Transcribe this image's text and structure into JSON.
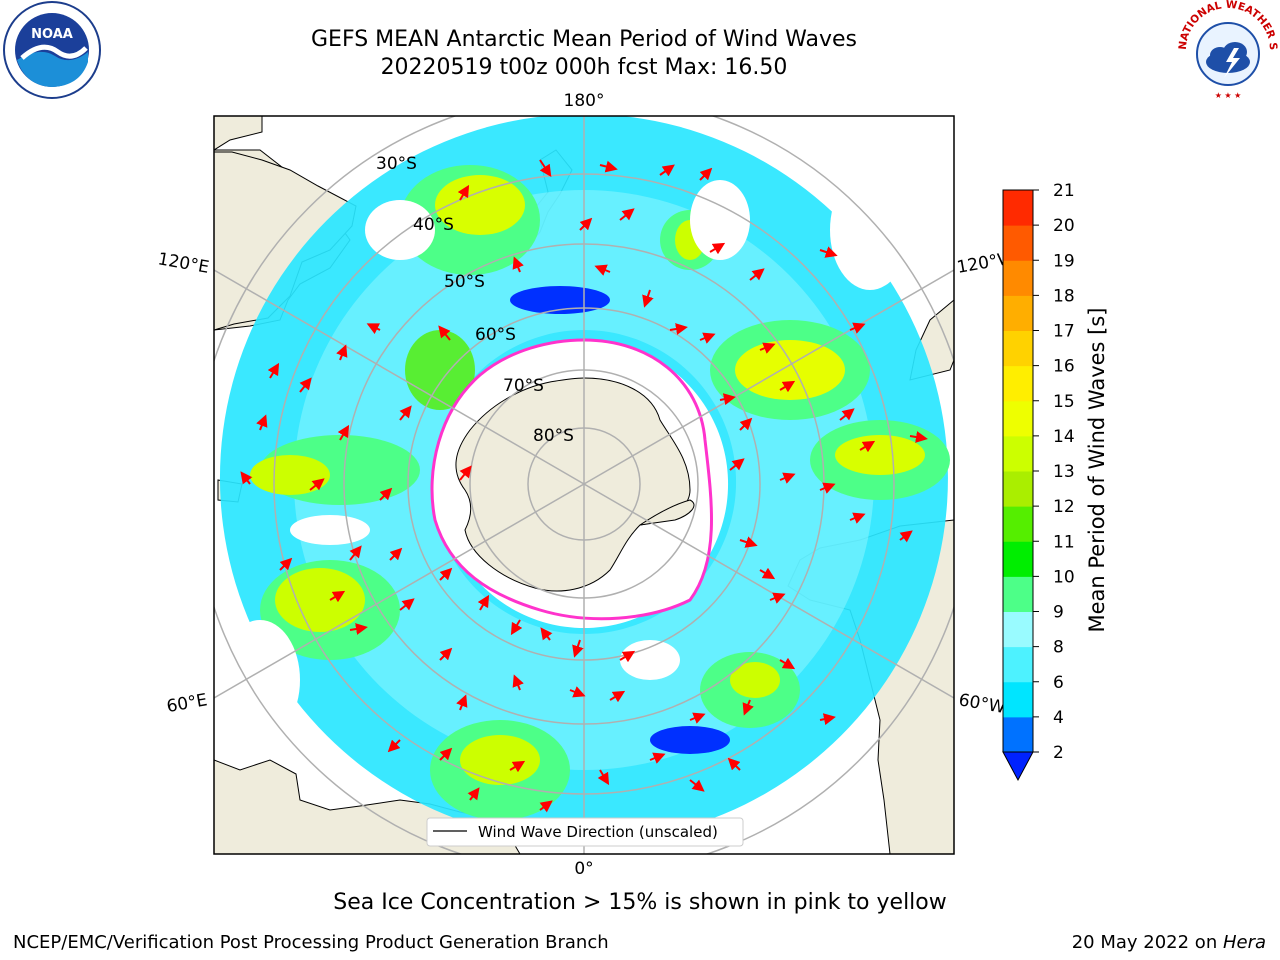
{
  "title": {
    "line1": "GEFS MEAN Antarctic Mean Period of Wind Waves",
    "line2": "20220519 t00z 000h fcst   Max: 16.50"
  },
  "map": {
    "projection": "south-polar-stereographic",
    "longitude_labels": {
      "top": "180°",
      "bottom": "0°",
      "upper_left": "120°E",
      "upper_right": "120°W",
      "lower_left": "60°E",
      "lower_right": "60°W"
    },
    "latitude_labels": [
      "30°S",
      "40°S",
      "50°S",
      "60°S",
      "70°S",
      "80°S"
    ],
    "legend_label": "Wind Wave Direction (unscaled)",
    "land_color": "#efecdc",
    "arrow_color": "#ff0000",
    "ice_edge_color": "#ff33cc"
  },
  "colorbar": {
    "label": "Mean Period of Wind Waves [s]",
    "ticks": [
      "2",
      "4",
      "6",
      "8",
      "9",
      "10",
      "11",
      "12",
      "13",
      "14",
      "15",
      "16",
      "17",
      "18",
      "19",
      "20",
      "21"
    ],
    "colors": [
      "#0072ff",
      "#00e5ff",
      "#4df2ff",
      "#99fbff",
      "#4dff88",
      "#00ee00",
      "#55ee00",
      "#aaee00",
      "#ccff00",
      "#eeff00",
      "#ffee00",
      "#ffd200",
      "#ffae00",
      "#ff8a00",
      "#ff5a00",
      "#ff2a00"
    ],
    "under_color": "#0022ff",
    "over_color": "#ff0000"
  },
  "note": "Sea Ice Concentration > 15% is shown in pink to yellow",
  "footer": {
    "left": "NCEP/EMC/Verification Post Processing Product Generation Branch",
    "right_date": "20 May 2022 on ",
    "right_machine": "Hera"
  },
  "logos": {
    "noaa": "NOAA",
    "nws": "NATIONAL WEATHER SERVICE"
  }
}
